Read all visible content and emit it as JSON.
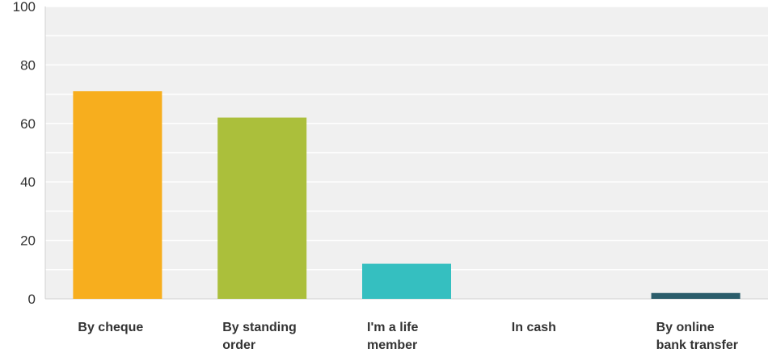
{
  "chart_data": {
    "type": "bar",
    "categories": [
      [
        "By cheque"
      ],
      [
        "By standing",
        "order"
      ],
      [
        "I'm a life",
        "member"
      ],
      [
        "In cash"
      ],
      [
        "By online",
        "bank transfer"
      ]
    ],
    "values": [
      71,
      62,
      12,
      0,
      2
    ],
    "colors": [
      "#f7ae1e",
      "#abbf3b",
      "#35bfc0",
      "#dddddd",
      "#2b5d6b"
    ],
    "yticks": [
      0,
      20,
      40,
      60,
      80,
      100
    ],
    "ylim": [
      0,
      100
    ],
    "grid": true,
    "plot_background": "#f0f0f0",
    "gridline_color": "#ffffff",
    "title": "",
    "xlabel": "",
    "ylabel": ""
  }
}
